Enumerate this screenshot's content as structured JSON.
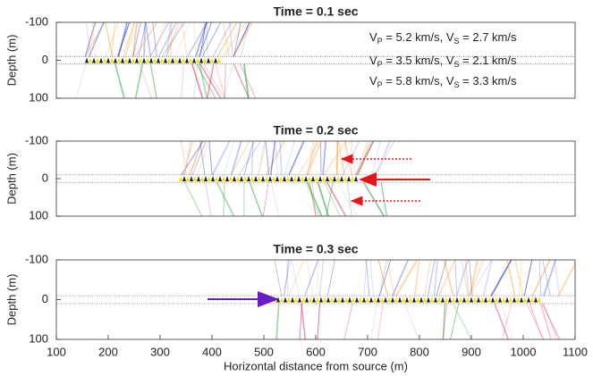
{
  "chart_data": [
    {
      "type": "image",
      "title": "Time = 0.1 sec",
      "ylabel": "Depth (m)",
      "xlim": [
        100,
        1100
      ],
      "ylim": [
        -100,
        100
      ],
      "y_inverted": true,
      "yticks": [
        -100,
        0,
        100
      ],
      "interfaces": [
        -10,
        10
      ],
      "annotations": [
        [
          "V",
          "P",
          " = 5.2 km/s, V",
          "S",
          " = 2.7 km/s"
        ],
        [
          "V",
          "P",
          " = 3.5 km/s, V",
          "S",
          " = 2.1 km/s"
        ],
        [
          "V",
          "P",
          " = 5.8 km/s, V",
          "S",
          " = 3.3 km/s"
        ]
      ]
    },
    {
      "type": "image",
      "title": "Time = 0.2 sec",
      "ylabel": "Depth (m)",
      "xlim": [
        100,
        1100
      ],
      "ylim": [
        -100,
        100
      ],
      "y_inverted": true,
      "yticks": [
        -100,
        0,
        100
      ],
      "interfaces": [
        -10,
        10
      ]
    },
    {
      "type": "image",
      "title": "Time = 0.3 sec",
      "ylabel": "Depth (m)",
      "xlabel": "Horizontal distance from source (m)",
      "xlim": [
        100,
        1100
      ],
      "ylim": [
        -100,
        100
      ],
      "y_inverted": true,
      "yticks": [
        -100,
        0,
        100
      ],
      "xticks": [
        100,
        200,
        300,
        400,
        500,
        600,
        700,
        800,
        900,
        1000,
        1100
      ],
      "interfaces": [
        -10,
        10
      ]
    }
  ]
}
